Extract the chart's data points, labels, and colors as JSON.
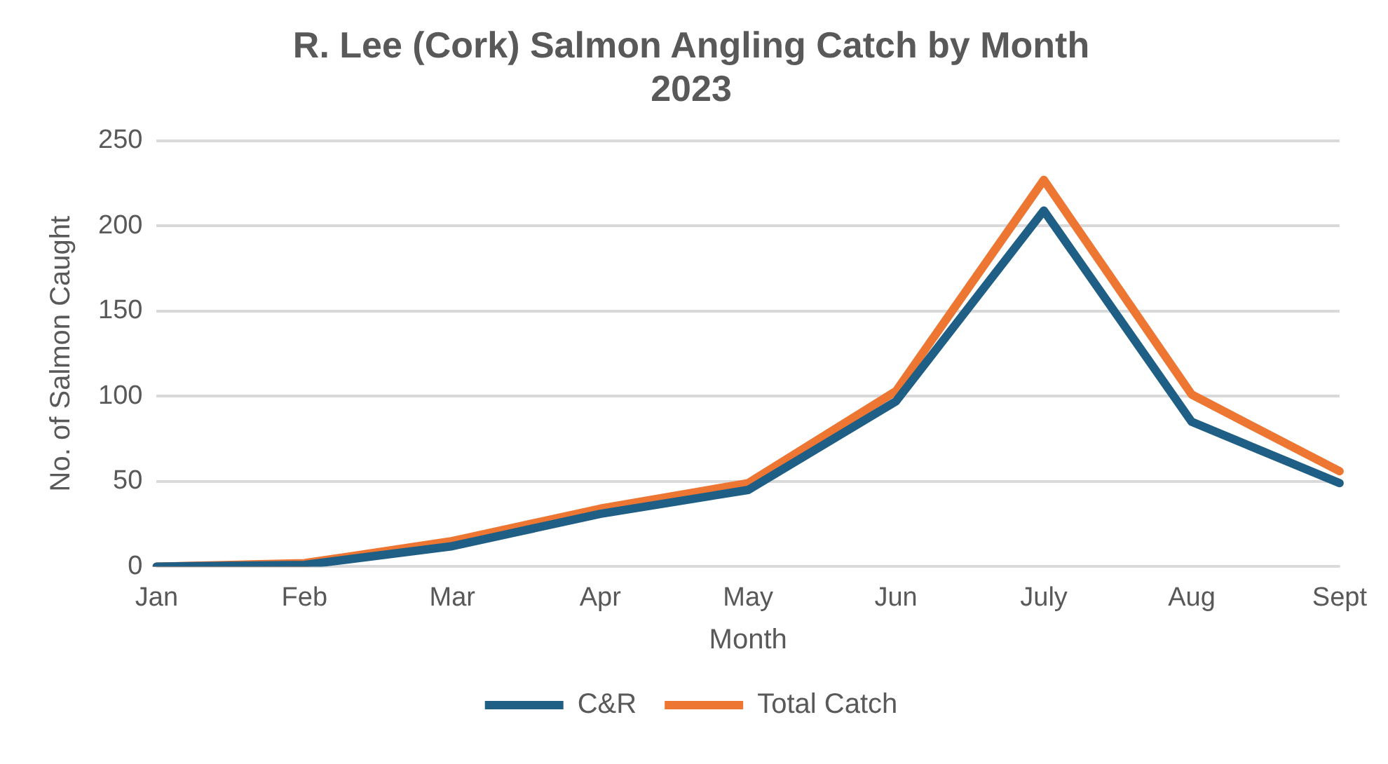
{
  "chart_data": {
    "type": "line",
    "title": [
      "R. Lee (Cork) Salmon Angling Catch by Month",
      "2023"
    ],
    "xlabel": "Month",
    "ylabel": "No. of Salmon Caught",
    "categories": [
      "Jan",
      "Feb",
      "Mar",
      "Apr",
      "May",
      "Jun",
      "July",
      "Aug",
      "Sept"
    ],
    "series": [
      {
        "name": "C&R",
        "color": "#1f5f86",
        "values": [
          0,
          1,
          12,
          31,
          45,
          97,
          209,
          85,
          49
        ]
      },
      {
        "name": "Total Catch",
        "color": "#ed7633",
        "values": [
          0,
          2,
          15,
          34,
          49,
          103,
          227,
          101,
          56
        ]
      }
    ],
    "ylim": [
      0,
      250
    ],
    "yticks": [
      0,
      50,
      100,
      150,
      200,
      250
    ],
    "grid": "y",
    "legend": "bottom",
    "marker": "none",
    "line_style": "solid"
  }
}
